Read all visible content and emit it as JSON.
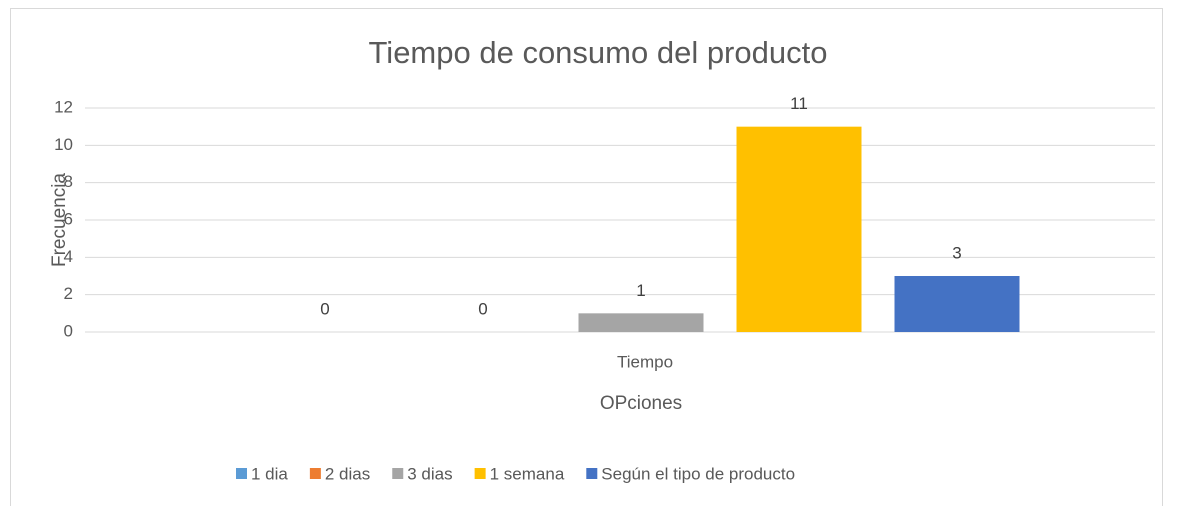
{
  "chart_data": {
    "type": "bar",
    "title": "Tiempo de consumo del producto",
    "x_label": "OPciones",
    "y_label": "Frecuencia",
    "categories": [
      "Tiempo"
    ],
    "series": [
      {
        "name": "1 dia",
        "color": "#5b9bd5",
        "values": [
          0
        ]
      },
      {
        "name": "2 dias",
        "color": "#ed7d31",
        "values": [
          0
        ]
      },
      {
        "name": "3 dias",
        "color": "#a5a5a5",
        "values": [
          1
        ]
      },
      {
        "name": "1 semana",
        "color": "#ffc000",
        "values": [
          11
        ]
      },
      {
        "name": "Según el tipo de producto",
        "color": "#4472c4",
        "values": [
          3
        ]
      }
    ],
    "ylim": [
      0,
      12
    ],
    "yticks": [
      0,
      2,
      4,
      6,
      8,
      10,
      12
    ],
    "grid": true,
    "legend": "bottom"
  }
}
